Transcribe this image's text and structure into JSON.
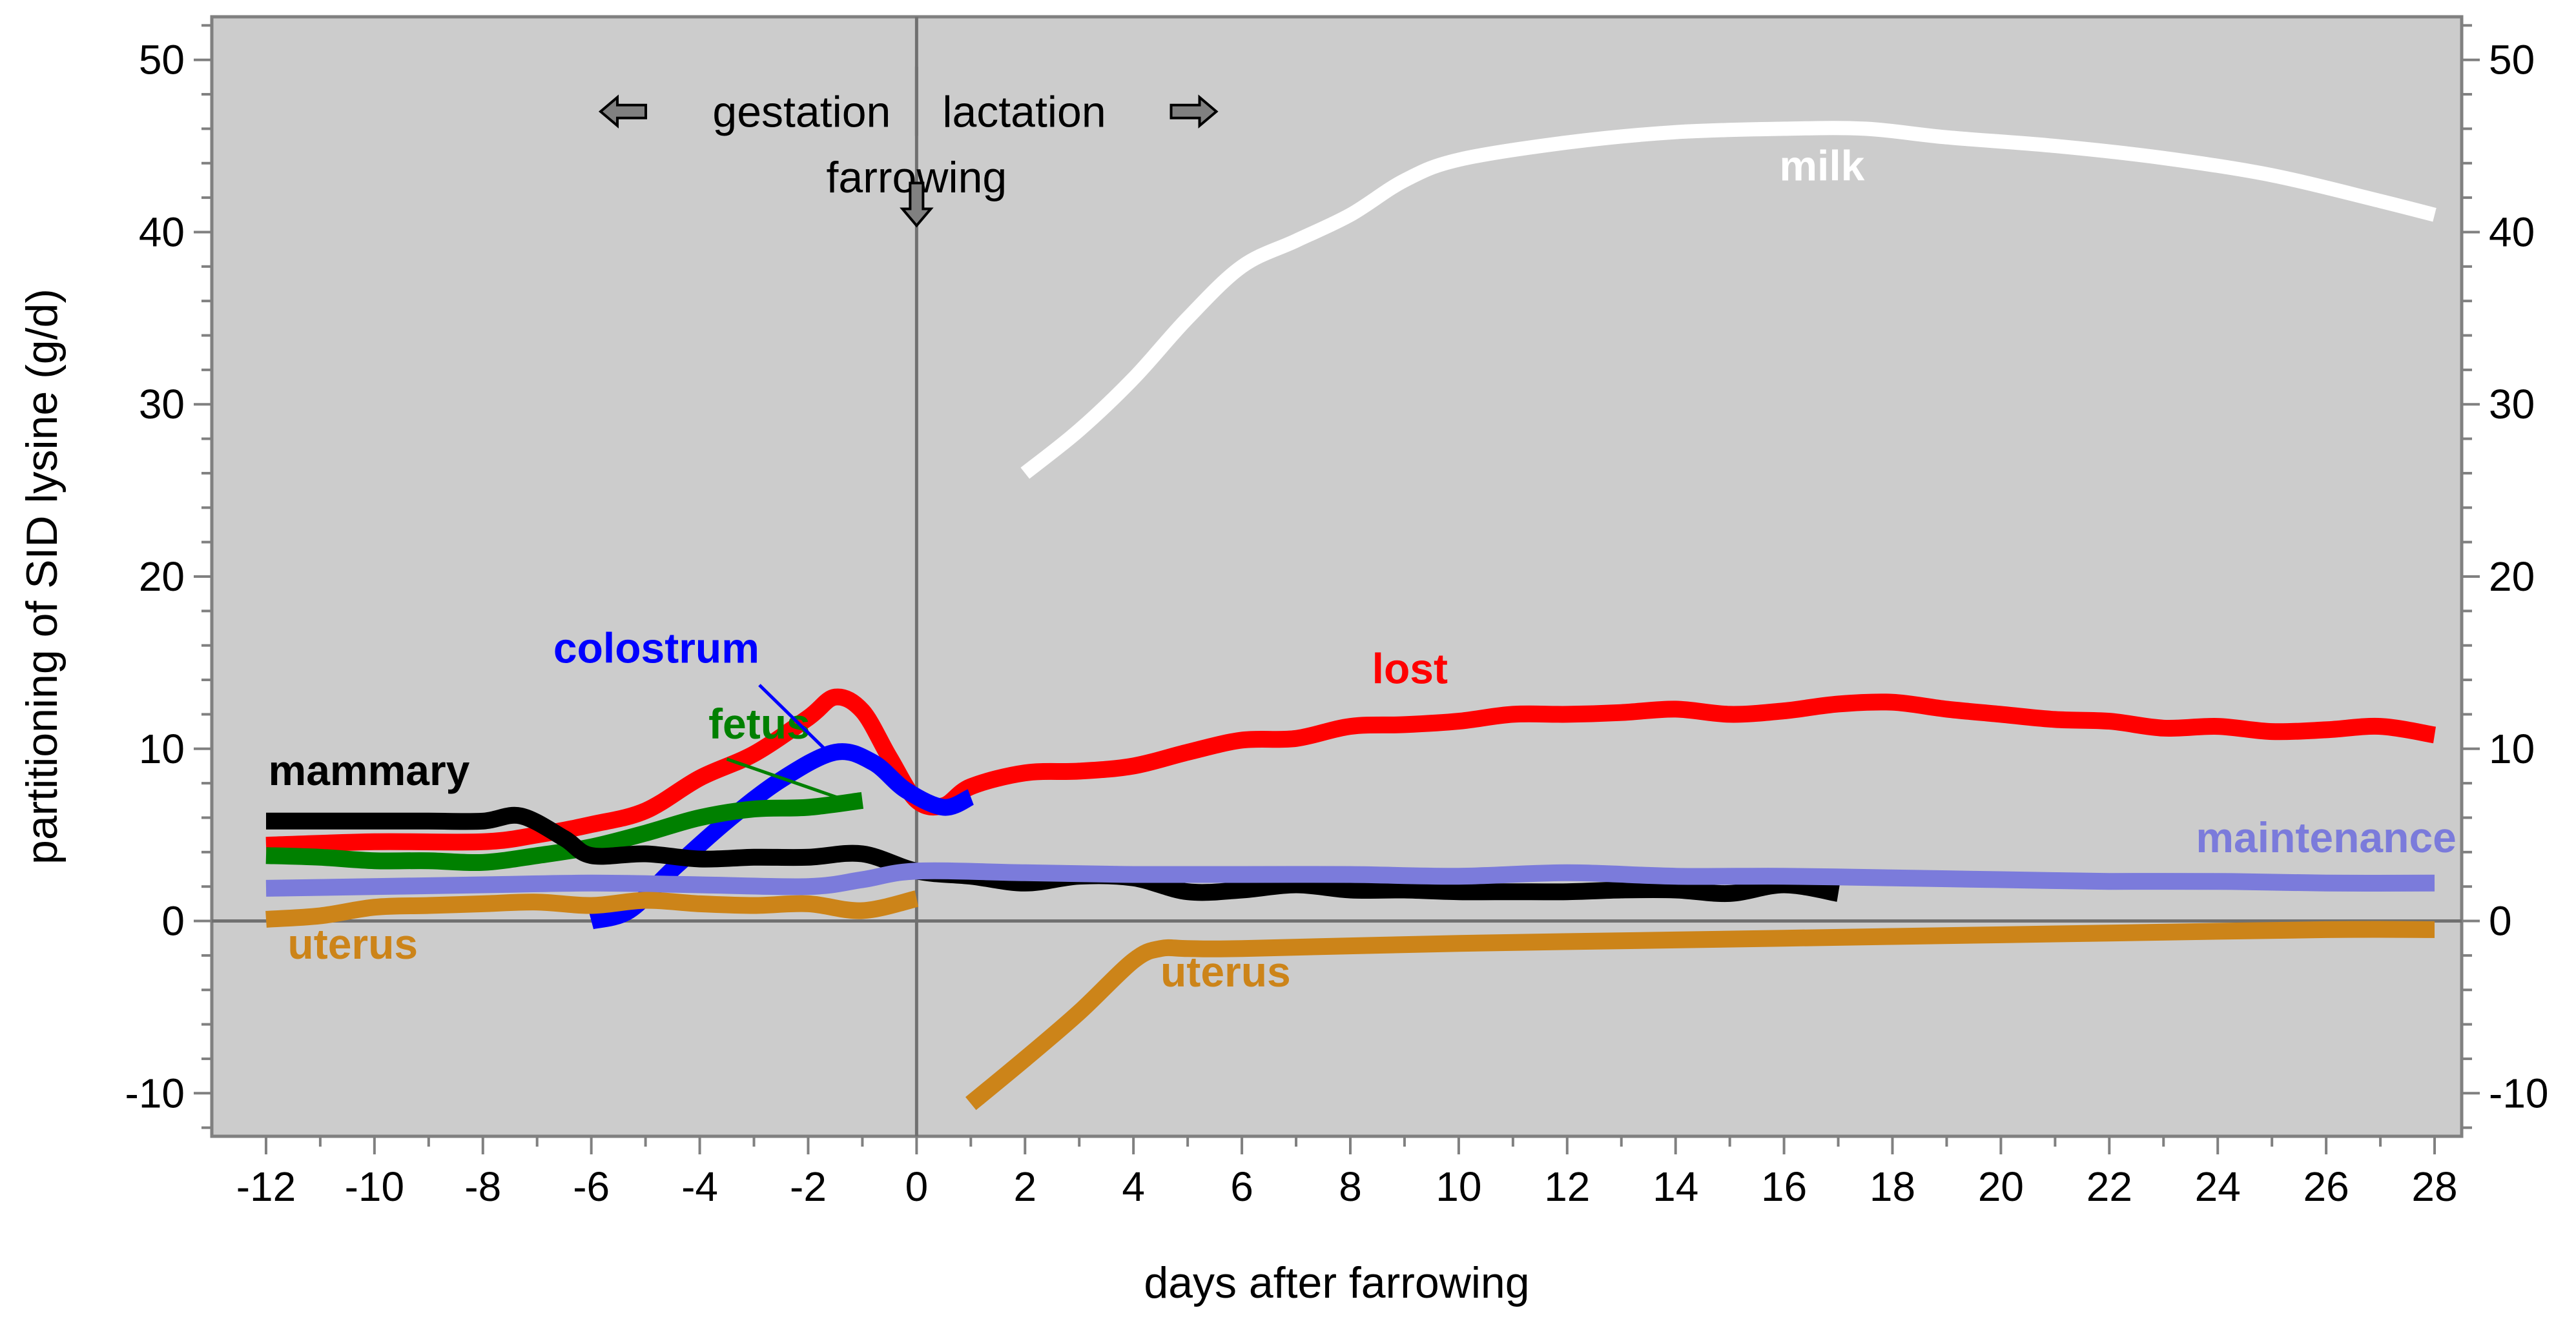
{
  "chart_data": {
    "type": "line",
    "xlabel": "days after farrowing",
    "ylabel": "partitioning of SID lysine (g/d)",
    "xlim": [
      -13,
      28.5
    ],
    "ylim": [
      -12.5,
      52.5
    ],
    "x_ticks": [
      -12,
      -10,
      -8,
      -6,
      -4,
      -2,
      0,
      2,
      4,
      6,
      8,
      10,
      12,
      14,
      16,
      18,
      20,
      22,
      24,
      26,
      28
    ],
    "y_ticks": [
      -10,
      0,
      10,
      20,
      30,
      40,
      50
    ],
    "y_ticks_right": [
      -10,
      0,
      10,
      20,
      30,
      40,
      50
    ],
    "grid": false,
    "background": "#cccccc",
    "annotations": {
      "gestation": "gestation",
      "lactation": "lactation",
      "farrowing": "farrowing"
    },
    "series": [
      {
        "name": "milk",
        "label_at": [
          16.7,
          43.0
        ],
        "color": "#ffffff",
        "width": 22,
        "x": [
          2,
          3,
          4,
          5,
          6,
          7,
          8,
          9,
          10,
          12,
          14,
          16,
          17.5,
          19,
          21,
          23,
          25,
          27,
          28
        ],
        "y": [
          26,
          28.5,
          31.5,
          35,
          38,
          39.5,
          41,
          43,
          44.2,
          45.2,
          45.8,
          46.0,
          46.0,
          45.5,
          45.0,
          44.3,
          43.3,
          41.8,
          41
        ]
      },
      {
        "name": "lost",
        "label_at": [
          9.1,
          13.8
        ],
        "color": "#ff0000",
        "width": 26,
        "x": [
          -12,
          -10,
          -8,
          -7,
          -6,
          -5,
          -4,
          -3,
          -2,
          -1.5,
          -1,
          -0.5,
          0,
          0.5,
          1,
          2,
          3,
          4,
          5,
          6,
          7,
          8,
          9,
          10,
          11,
          12,
          13,
          14,
          15,
          16,
          17,
          18,
          19,
          20,
          21,
          22,
          23,
          24,
          25,
          26,
          27,
          28
        ],
        "y": [
          4.4,
          4.6,
          4.6,
          5.0,
          5.6,
          6.4,
          8.3,
          9.7,
          11.8,
          13.0,
          12.2,
          9.5,
          7.0,
          6.7,
          7.8,
          8.6,
          8.7,
          9.0,
          9.8,
          10.5,
          10.6,
          11.3,
          11.4,
          11.6,
          12.0,
          12.0,
          12.1,
          12.3,
          12.0,
          12.2,
          12.6,
          12.7,
          12.3,
          12.0,
          11.7,
          11.6,
          11.2,
          11.3,
          11.0,
          11.1,
          11.3,
          10.8
        ]
      },
      {
        "name": "colostrum",
        "label_at": [
          -4.8,
          15.0
        ],
        "color": "#0000ff",
        "width": 26,
        "x": [
          -6,
          -5.3,
          -4.5,
          -3.5,
          -2.5,
          -1.5,
          -0.8,
          -0.2,
          0.5,
          1
        ],
        "y": [
          0,
          0.6,
          3.0,
          5.8,
          8.2,
          9.8,
          9.2,
          7.6,
          6.6,
          7.2
        ]
      },
      {
        "name": "fetus",
        "label_at": [
          -2.9,
          10.6
        ],
        "color": "#008000",
        "width": 26,
        "x": [
          -12,
          -11,
          -10,
          -9,
          -8,
          -7,
          -6,
          -5,
          -4,
          -3,
          -2,
          -1
        ],
        "y": [
          3.8,
          3.7,
          3.5,
          3.5,
          3.4,
          3.8,
          4.3,
          5.1,
          6.0,
          6.5,
          6.6,
          7.0
        ]
      },
      {
        "name": "mammary",
        "label_at": [
          -10.1,
          7.9
        ],
        "color": "#000000",
        "width": 26,
        "x": [
          -12,
          -11,
          -10,
          -9,
          -8,
          -7.3,
          -6.5,
          -6,
          -5,
          -4,
          -3,
          -2,
          -1,
          0,
          1,
          2,
          3,
          4,
          5,
          6,
          7,
          8,
          9,
          10,
          11,
          12,
          13,
          14,
          15,
          16,
          17
        ],
        "y": [
          5.8,
          5.8,
          5.8,
          5.8,
          5.8,
          6.1,
          4.8,
          3.8,
          3.9,
          3.6,
          3.7,
          3.7,
          3.9,
          2.9,
          2.6,
          2.2,
          2.6,
          2.5,
          1.7,
          1.8,
          2.1,
          1.8,
          1.8,
          1.7,
          1.7,
          1.7,
          1.8,
          1.8,
          1.6,
          2.1,
          1.6
        ]
      },
      {
        "name": "maintenance",
        "label_at": [
          26.0,
          4.0
        ],
        "color": "#7b7bdb",
        "width": 26,
        "x": [
          -12,
          -8,
          -6,
          -4,
          -2,
          -1,
          0,
          2,
          4,
          6,
          8,
          10,
          12,
          14,
          16,
          18,
          20,
          22,
          24,
          26,
          28
        ],
        "y": [
          1.9,
          2.1,
          2.2,
          2.1,
          2.0,
          2.4,
          2.9,
          2.8,
          2.7,
          2.7,
          2.7,
          2.6,
          2.8,
          2.6,
          2.6,
          2.5,
          2.4,
          2.3,
          2.3,
          2.2,
          2.2
        ]
      },
      {
        "name": "uterus",
        "label_at": [
          -10.4,
          -2.2
        ],
        "color": "#cc8419",
        "width": 26,
        "x": [
          -12,
          -11,
          -10,
          -9,
          -8,
          -7,
          -6,
          -5,
          -4,
          -3,
          -2,
          -1,
          0
        ],
        "y": [
          0.1,
          0.3,
          0.8,
          0.9,
          1.0,
          1.1,
          0.9,
          1.2,
          1.0,
          0.9,
          1.0,
          0.6,
          1.3
        ]
      },
      {
        "name": "uterus",
        "label_at": [
          5.7,
          -3.8
        ],
        "color": "#cc8419",
        "width": 26,
        "x": [
          1,
          2,
          3,
          4,
          4.5,
          5,
          6,
          10,
          14,
          18,
          22,
          26,
          28
        ],
        "y": [
          -10.6,
          -8.0,
          -5.3,
          -2.3,
          -1.6,
          -1.6,
          -1.6,
          -1.3,
          -1.1,
          -0.9,
          -0.7,
          -0.5,
          -0.5
        ]
      }
    ]
  }
}
